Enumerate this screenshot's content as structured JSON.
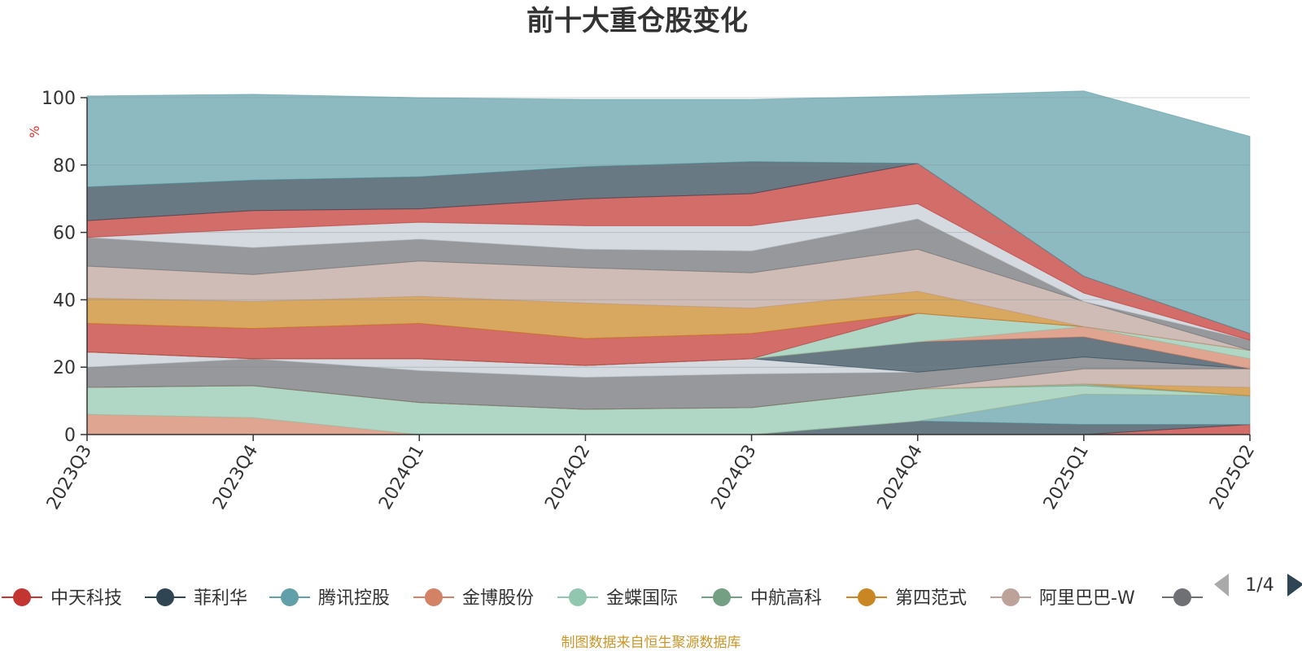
{
  "title": "前十大重仓股变化",
  "source_note": "制图数据来自恒生聚源数据库",
  "legend_page": "1/4",
  "chart_data": {
    "type": "area",
    "stacked": true,
    "title": "前十大重仓股变化",
    "ylabel": "%",
    "ylim": [
      0,
      100
    ],
    "yticks": [
      0,
      20,
      40,
      60,
      80,
      100
    ],
    "grid": true,
    "legend_position": "bottom",
    "categories": [
      "2023Q3",
      "2023Q4",
      "2024Q1",
      "2024Q2",
      "2024Q3",
      "2024Q4",
      "2025Q1",
      "2025Q2"
    ],
    "series": [
      {
        "name": "中天科技",
        "color": "#c23531",
        "values": [
          0,
          0,
          0,
          0,
          0,
          0,
          0,
          3
        ]
      },
      {
        "name": "菲利华",
        "color": "#2f4554",
        "values": [
          0,
          0,
          0,
          0,
          0,
          4,
          3,
          0
        ]
      },
      {
        "name": "腾讯控股",
        "color": "#61a0a8",
        "values": [
          0,
          0,
          0,
          0,
          0,
          0,
          9,
          8.5
        ]
      },
      {
        "name": "金博股份",
        "color": "#d48265",
        "values": [
          6,
          5,
          0,
          0,
          0,
          0,
          0,
          0
        ]
      },
      {
        "name": "金蝶国际",
        "color": "#91c7ae",
        "values": [
          8,
          9.5,
          9.5,
          7.5,
          8,
          9.5,
          2.5,
          0
        ]
      },
      {
        "name": "中航高科",
        "color": "#749f83",
        "values": [
          0,
          0,
          0,
          0,
          0,
          0,
          0.5,
          0
        ]
      },
      {
        "name": "第四范式",
        "color": "#ca8622",
        "values": [
          0,
          0,
          0,
          0,
          0,
          0,
          0,
          2.5
        ]
      },
      {
        "name": "阿里巴巴-W",
        "color": "#bda29a",
        "values": [
          0,
          0,
          0,
          0,
          0,
          0,
          4.5,
          5.5
        ]
      },
      {
        "name": "",
        "color": "#6e7074",
        "values": [
          6,
          8,
          9.5,
          9.5,
          10,
          5,
          3.5,
          0
        ]
      },
      {
        "color": "#c4ccd3",
        "values": [
          4.5,
          0,
          3.5,
          3.5,
          4.5,
          0,
          0,
          0
        ]
      },
      {
        "color": "#2f4554",
        "values": [
          0,
          0,
          0,
          0,
          0,
          9,
          6,
          0
        ]
      },
      {
        "color": "#d48265",
        "values": [
          0,
          0,
          0,
          0,
          0,
          0,
          3,
          3
        ]
      },
      {
        "color": "#91c7ae",
        "values": [
          0,
          0,
          0,
          0,
          0,
          8.5,
          0,
          2.5
        ]
      },
      {
        "color": "#c23531",
        "values": [
          8.5,
          9,
          10.5,
          8,
          7.5,
          0,
          0,
          0
        ]
      },
      {
        "color": "#ca8622",
        "values": [
          7.5,
          8,
          8,
          10.5,
          7.5,
          6.5,
          0,
          0
        ]
      },
      {
        "color": "#bda29a",
        "values": [
          9.5,
          8,
          10.5,
          10.5,
          10.5,
          12.5,
          7.5,
          0
        ]
      },
      {
        "color": "#6e7074",
        "values": [
          8.5,
          8,
          6.5,
          5.5,
          6.5,
          9,
          0,
          3
        ]
      },
      {
        "color": "#c4ccd3",
        "values": [
          0,
          5.5,
          5,
          7,
          7.5,
          4.5,
          2.5,
          0
        ]
      },
      {
        "color": "#c23531",
        "values": [
          5,
          5.5,
          4,
          8,
          9.5,
          12,
          5,
          2
        ]
      },
      {
        "color": "#2f4554",
        "values": [
          10,
          9,
          9.5,
          9.5,
          9.5,
          0,
          0,
          0
        ]
      },
      {
        "color": "#61a0a8",
        "values": [
          27,
          25.5,
          23.5,
          20,
          18.5,
          20,
          55,
          58.5
        ]
      }
    ],
    "legend": [
      {
        "name": "中天科技",
        "color": "#c23531"
      },
      {
        "name": "菲利华",
        "color": "#2f4554"
      },
      {
        "name": "腾讯控股",
        "color": "#61a0a8"
      },
      {
        "name": "金博股份",
        "color": "#d48265"
      },
      {
        "name": "金蝶国际",
        "color": "#91c7ae"
      },
      {
        "name": "中航高科",
        "color": "#749f83"
      },
      {
        "name": "第四范式",
        "color": "#ca8622"
      },
      {
        "name": "阿里巴巴-W",
        "color": "#bda29a"
      },
      {
        "name": "",
        "color": "#6e7074"
      }
    ]
  }
}
